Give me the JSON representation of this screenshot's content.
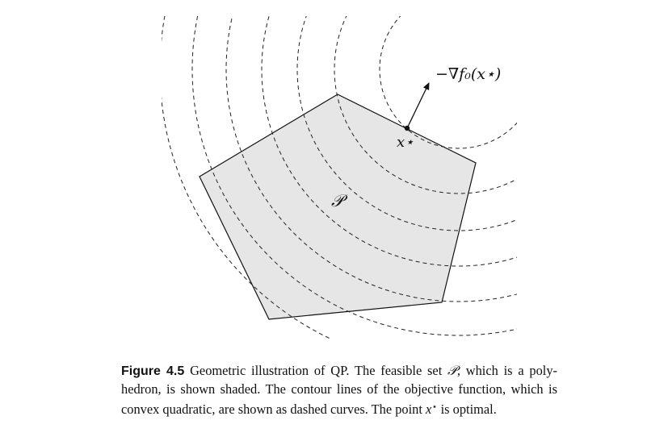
{
  "figure": {
    "feasible_set_label": "𝒫",
    "gradient_label": "−∇f₀(x⋆)",
    "optimal_point_label": "x⋆"
  },
  "caption": {
    "label": "Figure 4.5",
    "line1_text": "Geometric illustration of QP. The feasible set",
    "line1_symbol": "𝒫",
    "line1_rest": ", which is a poly-",
    "line2_text": "hedron, is shown shaded. The contour lines of the objective function, which",
    "line3_text": "is convex quadratic, are shown as dashed curves. The point",
    "line3_symbol_base": "x",
    "line3_symbol_sup": "⋆",
    "line3_rest": "is optimal."
  }
}
